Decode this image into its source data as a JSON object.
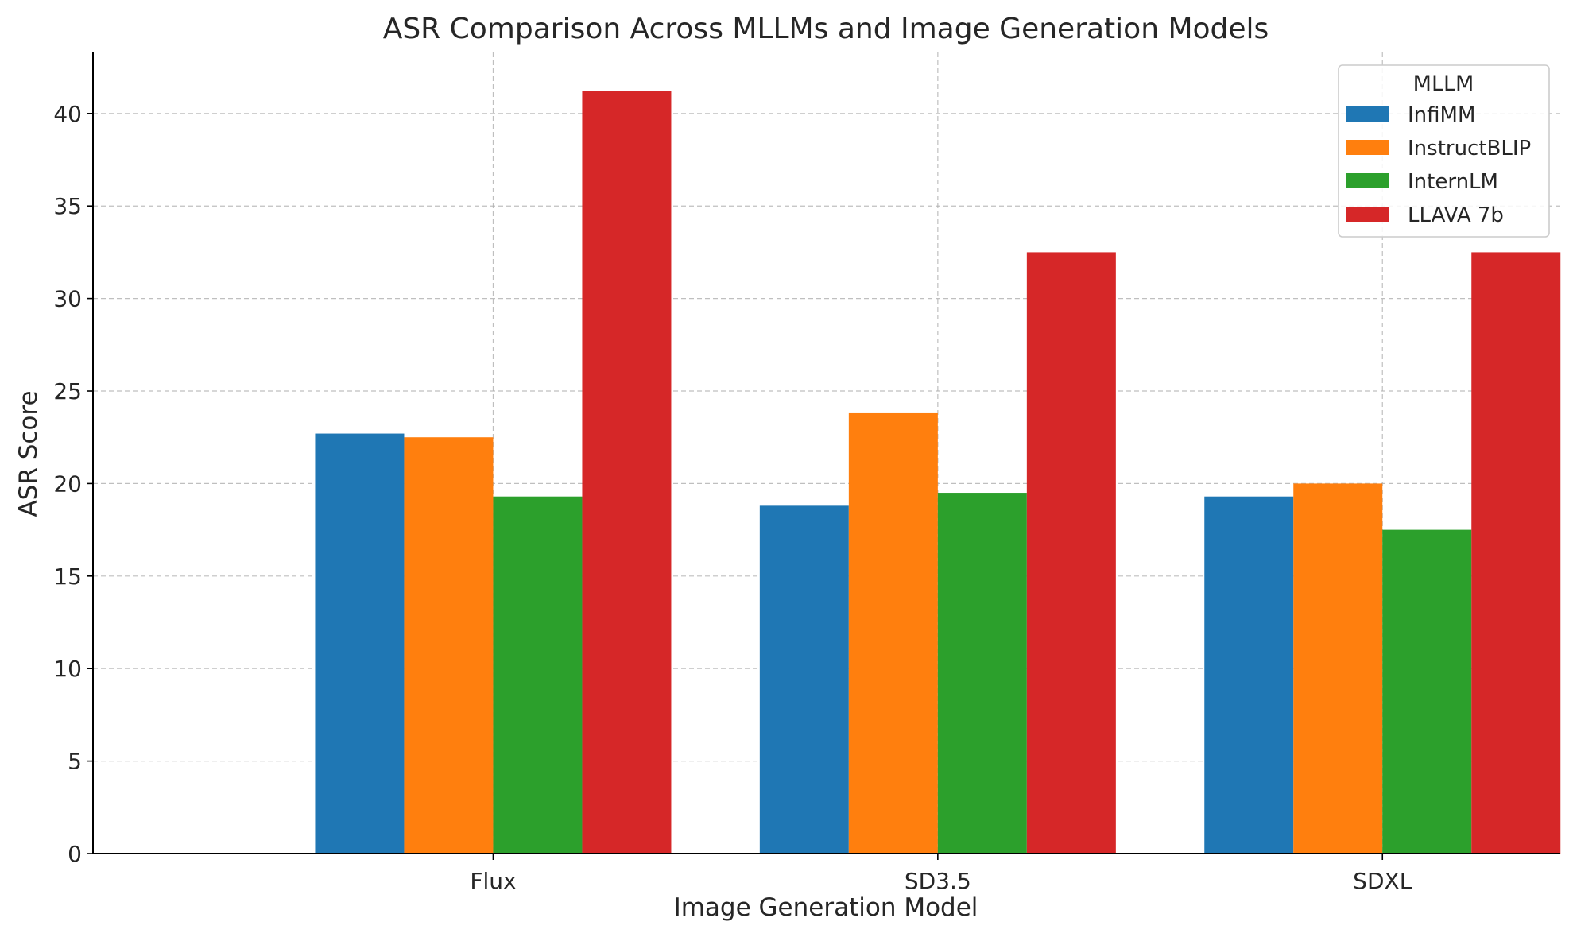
{
  "chart_data": {
    "type": "bar",
    "title": "ASR Comparison Across MLLMs and Image Generation Models",
    "xlabel": "Image Generation Model",
    "ylabel": "ASR Score",
    "categories": [
      "Flux",
      "SD3.5",
      "SDXL"
    ],
    "series": [
      {
        "name": "InfiMM",
        "color": "#1f77b4",
        "values": [
          22.7,
          18.8,
          19.3
        ]
      },
      {
        "name": "InstructBLIP",
        "color": "#ff7f0e",
        "values": [
          22.5,
          23.8,
          20.0
        ]
      },
      {
        "name": "InternLM",
        "color": "#2ca02c",
        "values": [
          19.3,
          19.5,
          17.5
        ]
      },
      {
        "name": "LLAVA 7b",
        "color": "#d62728",
        "values": [
          41.2,
          32.5,
          32.5
        ]
      }
    ],
    "ylim": [
      0,
      43.3
    ],
    "yticks": [
      0,
      5,
      10,
      15,
      20,
      25,
      30,
      35,
      40
    ],
    "grid": true,
    "legend": {
      "title": "MLLM",
      "placement": "top-right"
    }
  }
}
